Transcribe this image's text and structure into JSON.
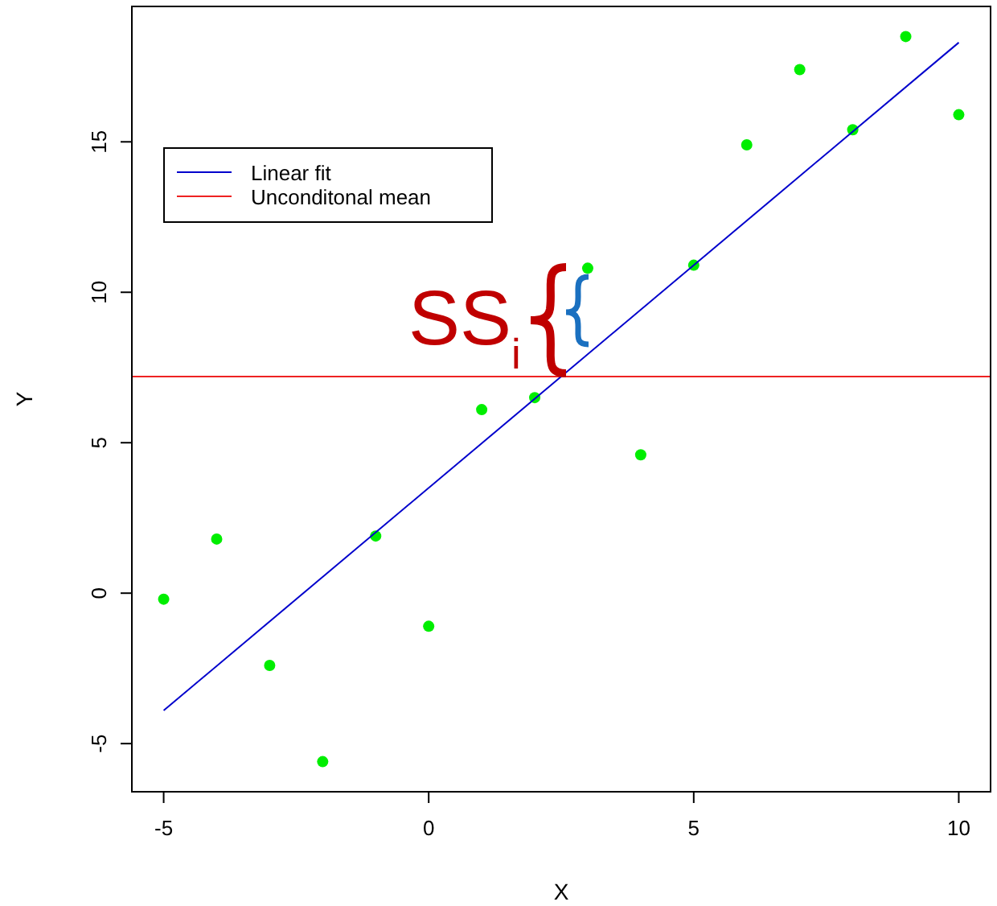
{
  "chart_data": {
    "type": "scatter",
    "xlabel": "X",
    "ylabel": "Y",
    "xlim": [
      -5.6,
      10.6
    ],
    "ylim": [
      -6.6,
      19.5
    ],
    "xticks": [
      -5,
      0,
      5,
      10
    ],
    "yticks": [
      -5,
      0,
      5,
      10,
      15
    ],
    "legend": "top left",
    "series": [
      {
        "marker": "circle",
        "color": "#00ee00",
        "x": [
          -5,
          -4,
          -3,
          -2,
          -1,
          0,
          1,
          2,
          3,
          4,
          5,
          6,
          7,
          8,
          9,
          10
        ],
        "values": [
          -0.2,
          1.8,
          -2.4,
          -5.6,
          1.9,
          -1.1,
          6.1,
          6.5,
          10.8,
          4.6,
          10.9,
          14.9,
          17.4,
          15.4,
          18.5,
          15.9
        ]
      },
      {
        "type": "line",
        "name": "Linear fit",
        "color": "#0000cc",
        "x": [
          -5,
          10
        ],
        "values": [
          -3.9,
          18.3
        ]
      }
    ],
    "ref_lines": [
      {
        "axis": "y",
        "value": 7.2,
        "label": "Unconditonal mean",
        "color": "#ee2222"
      }
    ],
    "annotations": [
      "SS$_{i}$"
    ]
  }
}
